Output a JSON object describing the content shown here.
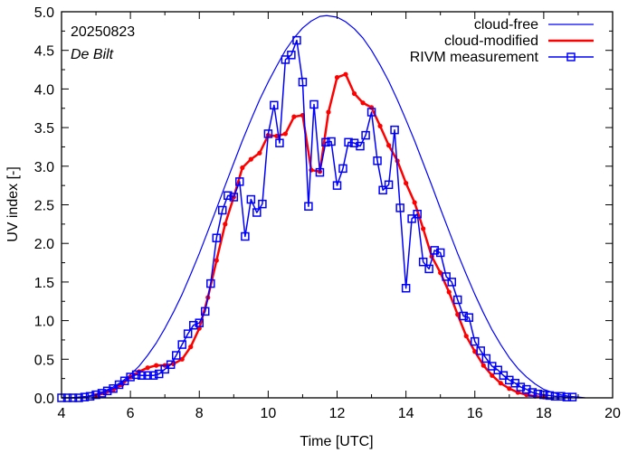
{
  "chart_data": {
    "type": "line",
    "title": "",
    "annotations": [
      "20250823",
      "De Bilt"
    ],
    "xlabel": "Time  [UTC]",
    "ylabel": "UV index  [-]",
    "xlim": [
      4,
      20
    ],
    "ylim": [
      0,
      5
    ],
    "xticks": [
      4,
      6,
      8,
      10,
      12,
      14,
      16,
      18,
      20
    ],
    "xtick_labels": [
      "4",
      "6",
      "8",
      "10",
      "12",
      "14",
      "16",
      "18",
      "20"
    ],
    "xminor_step": 1,
    "yticks": [
      0,
      0.5,
      1,
      1.5,
      2,
      2.5,
      3,
      3.5,
      4,
      4.5,
      5
    ],
    "ytick_labels": [
      "0.0",
      "0.5",
      "1.0",
      "1.5",
      "2.0",
      "2.5",
      "3.0",
      "3.5",
      "4.0",
      "4.5",
      "5.0"
    ],
    "yminor_step": 0.25,
    "grid": false,
    "legend_position": "top-right",
    "series": [
      {
        "name": "cloud-free",
        "color": "#0000ff",
        "marker": "none",
        "x": [
          4.3,
          4.5,
          4.75,
          5.0,
          5.25,
          5.5,
          5.75,
          6.0,
          6.25,
          6.5,
          6.75,
          7.0,
          7.25,
          7.5,
          7.75,
          8.0,
          8.25,
          8.5,
          8.75,
          9.0,
          9.25,
          9.5,
          9.75,
          10.0,
          10.25,
          10.5,
          10.75,
          11.0,
          11.25,
          11.5,
          11.7,
          12.0,
          12.25,
          12.5,
          12.75,
          13.0,
          13.25,
          13.5,
          13.75,
          14.0,
          14.25,
          14.5,
          14.75,
          15.0,
          15.25,
          15.5,
          15.75,
          16.0,
          16.25,
          16.5,
          16.75,
          17.0,
          17.25,
          17.5,
          17.75,
          18.0,
          18.25,
          18.5,
          18.75,
          19.0,
          19.2
        ],
        "y": [
          0.0,
          0.01,
          0.02,
          0.05,
          0.09,
          0.14,
          0.21,
          0.3,
          0.41,
          0.55,
          0.71,
          0.9,
          1.11,
          1.34,
          1.6,
          1.87,
          2.16,
          2.45,
          2.75,
          3.04,
          3.33,
          3.6,
          3.86,
          4.09,
          4.3,
          4.5,
          4.66,
          4.79,
          4.88,
          4.94,
          4.95,
          4.93,
          4.87,
          4.78,
          4.66,
          4.5,
          4.31,
          4.1,
          3.86,
          3.6,
          3.33,
          3.04,
          2.75,
          2.45,
          2.16,
          1.87,
          1.6,
          1.34,
          1.1,
          0.88,
          0.69,
          0.52,
          0.38,
          0.27,
          0.18,
          0.11,
          0.07,
          0.04,
          0.02,
          0.01,
          0.0
        ]
      },
      {
        "name": "cloud-modified",
        "color": "#ff0000",
        "marker": "dot",
        "x": [
          5.0,
          5.25,
          5.5,
          5.75,
          6.0,
          6.25,
          6.5,
          6.75,
          7.0,
          7.25,
          7.5,
          7.75,
          8.0,
          8.25,
          8.5,
          8.75,
          9.0,
          9.25,
          9.5,
          9.75,
          10.0,
          10.25,
          10.5,
          10.75,
          11.0,
          11.25,
          11.5,
          11.75,
          12.0,
          12.25,
          12.5,
          12.75,
          13.0,
          13.25,
          13.5,
          13.75,
          14.0,
          14.25,
          14.5,
          14.75,
          15.0,
          15.25,
          15.5,
          15.75,
          16.0,
          16.25,
          16.5,
          16.75,
          17.0,
          17.25,
          17.5,
          17.75,
          18.0
        ],
        "y": [
          0.03,
          0.06,
          0.1,
          0.17,
          0.27,
          0.34,
          0.39,
          0.42,
          0.42,
          0.44,
          0.5,
          0.66,
          0.9,
          1.3,
          1.78,
          2.25,
          2.6,
          2.98,
          3.09,
          3.17,
          3.4,
          3.39,
          3.42,
          3.64,
          3.66,
          2.95,
          2.93,
          3.7,
          4.15,
          4.19,
          3.94,
          3.82,
          3.76,
          3.52,
          3.27,
          3.07,
          2.78,
          2.53,
          2.19,
          1.83,
          1.62,
          1.37,
          1.08,
          0.8,
          0.6,
          0.42,
          0.29,
          0.19,
          0.12,
          0.07,
          0.04,
          0.02,
          0.01
        ]
      },
      {
        "name": "RIVM measurement",
        "color": "#0000ff",
        "marker": "square",
        "x": [
          4.0,
          4.17,
          4.33,
          4.5,
          4.67,
          4.83,
          5.0,
          5.17,
          5.33,
          5.5,
          5.67,
          5.83,
          6.0,
          6.17,
          6.33,
          6.5,
          6.67,
          6.83,
          7.0,
          7.17,
          7.33,
          7.5,
          7.67,
          7.83,
          8.0,
          8.17,
          8.33,
          8.5,
          8.67,
          8.83,
          9.0,
          9.17,
          9.33,
          9.5,
          9.67,
          9.83,
          10.0,
          10.17,
          10.33,
          10.5,
          10.67,
          10.83,
          11.0,
          11.17,
          11.33,
          11.5,
          11.67,
          11.83,
          12.0,
          12.17,
          12.33,
          12.5,
          12.67,
          12.83,
          13.0,
          13.17,
          13.33,
          13.5,
          13.67,
          13.83,
          14.0,
          14.17,
          14.33,
          14.5,
          14.67,
          14.83,
          15.0,
          15.17,
          15.33,
          15.5,
          15.67,
          15.83,
          16.0,
          16.17,
          16.33,
          16.5,
          16.67,
          16.83,
          17.0,
          17.17,
          17.33,
          17.5,
          17.67,
          17.83,
          18.0,
          18.17,
          18.33,
          18.5,
          18.67,
          18.83
        ],
        "y": [
          0.0,
          0.0,
          0.0,
          0.0,
          0.01,
          0.02,
          0.04,
          0.06,
          0.09,
          0.12,
          0.17,
          0.22,
          0.27,
          0.3,
          0.29,
          0.29,
          0.29,
          0.31,
          0.37,
          0.43,
          0.55,
          0.69,
          0.83,
          0.94,
          0.97,
          1.12,
          1.48,
          2.07,
          2.43,
          2.62,
          2.6,
          2.8,
          2.09,
          2.57,
          2.4,
          2.51,
          3.42,
          3.79,
          3.3,
          4.38,
          4.44,
          4.63,
          4.09,
          2.48,
          3.8,
          2.92,
          3.31,
          3.32,
          2.75,
          2.97,
          3.31,
          3.3,
          3.26,
          3.4,
          3.7,
          3.07,
          2.69,
          2.76,
          3.47,
          2.46,
          1.42,
          2.32,
          2.38,
          1.76,
          1.67,
          1.91,
          1.88,
          1.57,
          1.5,
          1.27,
          1.06,
          1.04,
          0.73,
          0.61,
          0.51,
          0.41,
          0.36,
          0.29,
          0.23,
          0.19,
          0.14,
          0.11,
          0.07,
          0.05,
          0.04,
          0.03,
          0.02,
          0.02,
          0.01,
          0.01
        ]
      }
    ]
  }
}
